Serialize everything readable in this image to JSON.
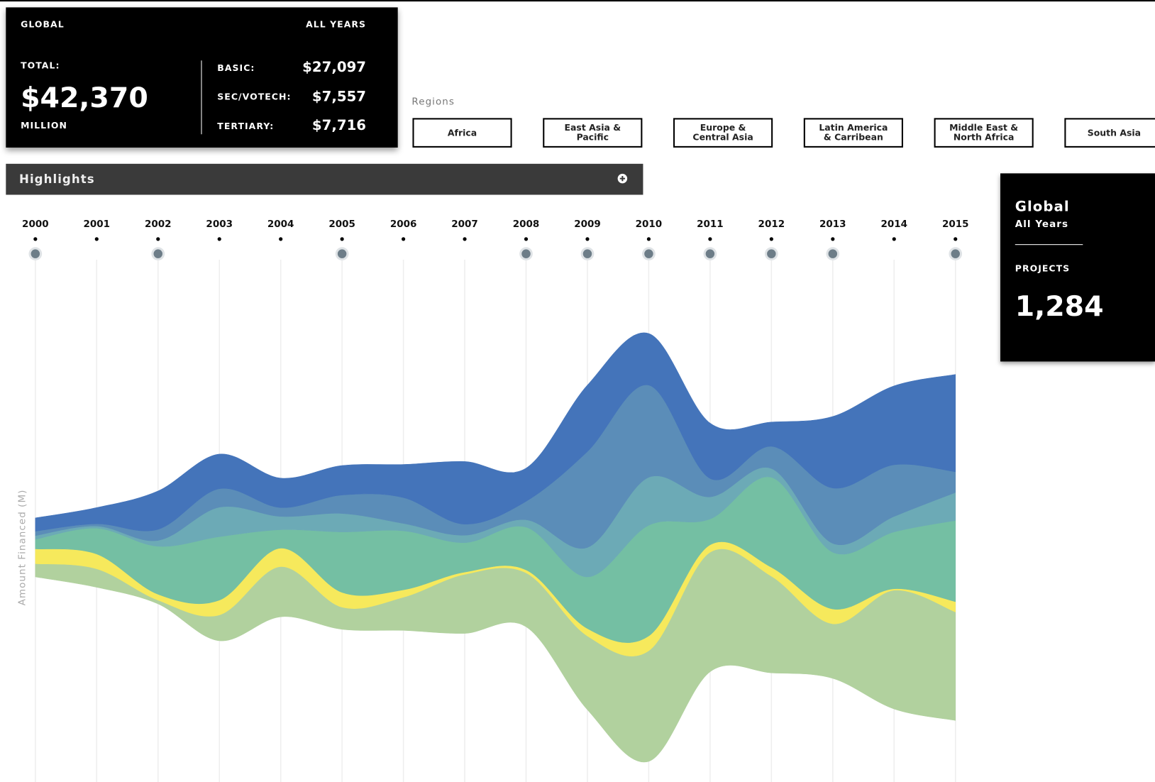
{
  "header": {
    "scope": "GLOBAL",
    "period": "ALL YEARS",
    "total_label": "TOTAL:",
    "total": "$42,370",
    "unit": "MILLION",
    "breakdown": [
      {
        "label": "BASIC:",
        "value": "$27,097"
      },
      {
        "label": "SEC/VOTECH:",
        "value": "$7,557"
      },
      {
        "label": "TERTIARY:",
        "value": "$7,716"
      }
    ]
  },
  "regions_label": "Regions",
  "regions": [
    "Africa",
    "East Asia & Pacific",
    "Europe & Central Asia",
    "Latin America & Carribean",
    "Middle East & North Africa",
    "South Asia"
  ],
  "highlights": "Highlights",
  "side_panel": {
    "title": "Global",
    "subtitle": "All Years",
    "projects_label": "PROJECTS",
    "projects": "1,284"
  },
  "chart_data": {
    "type": "streamgraph",
    "y_label": "Amount Financed (M)",
    "categories": [
      "2000",
      "2001",
      "2002",
      "2003",
      "2004",
      "2005",
      "2006",
      "2007",
      "2008",
      "2009",
      "2010",
      "2011",
      "2012",
      "2013",
      "2014",
      "2015"
    ],
    "series": [
      {
        "color": "#b1d19e",
        "values": [
          180,
          250,
          50,
          350,
          680,
          300,
          450,
          800,
          730,
          1000,
          1500,
          1620,
          1310,
          740,
          1610,
          1470
        ]
      },
      {
        "color": "#f6e95c",
        "values": [
          200,
          200,
          80,
          200,
          250,
          200,
          100,
          30,
          40,
          100,
          200,
          100,
          120,
          200,
          20,
          140
        ]
      },
      {
        "color": "#74bfa3",
        "values": [
          130,
          350,
          650,
          860,
          250,
          820,
          800,
          400,
          580,
          700,
          1500,
          350,
          1220,
          770,
          770,
          1100
        ]
      },
      {
        "color": "#6caab6",
        "values": [
          50,
          30,
          80,
          400,
          180,
          250,
          100,
          100,
          100,
          400,
          650,
          300,
          120,
          120,
          210,
          380
        ]
      },
      {
        "color": "#5b8db8",
        "values": [
          60,
          30,
          150,
          250,
          120,
          250,
          350,
          150,
          250,
          1300,
          1250,
          250,
          300,
          750,
          700,
          280
        ]
      },
      {
        "color": "#4474ba",
        "values": [
          180,
          220,
          520,
          470,
          400,
          400,
          450,
          850,
          450,
          900,
          700,
          750,
          330,
          970,
          1070,
          1320
        ]
      }
    ]
  }
}
